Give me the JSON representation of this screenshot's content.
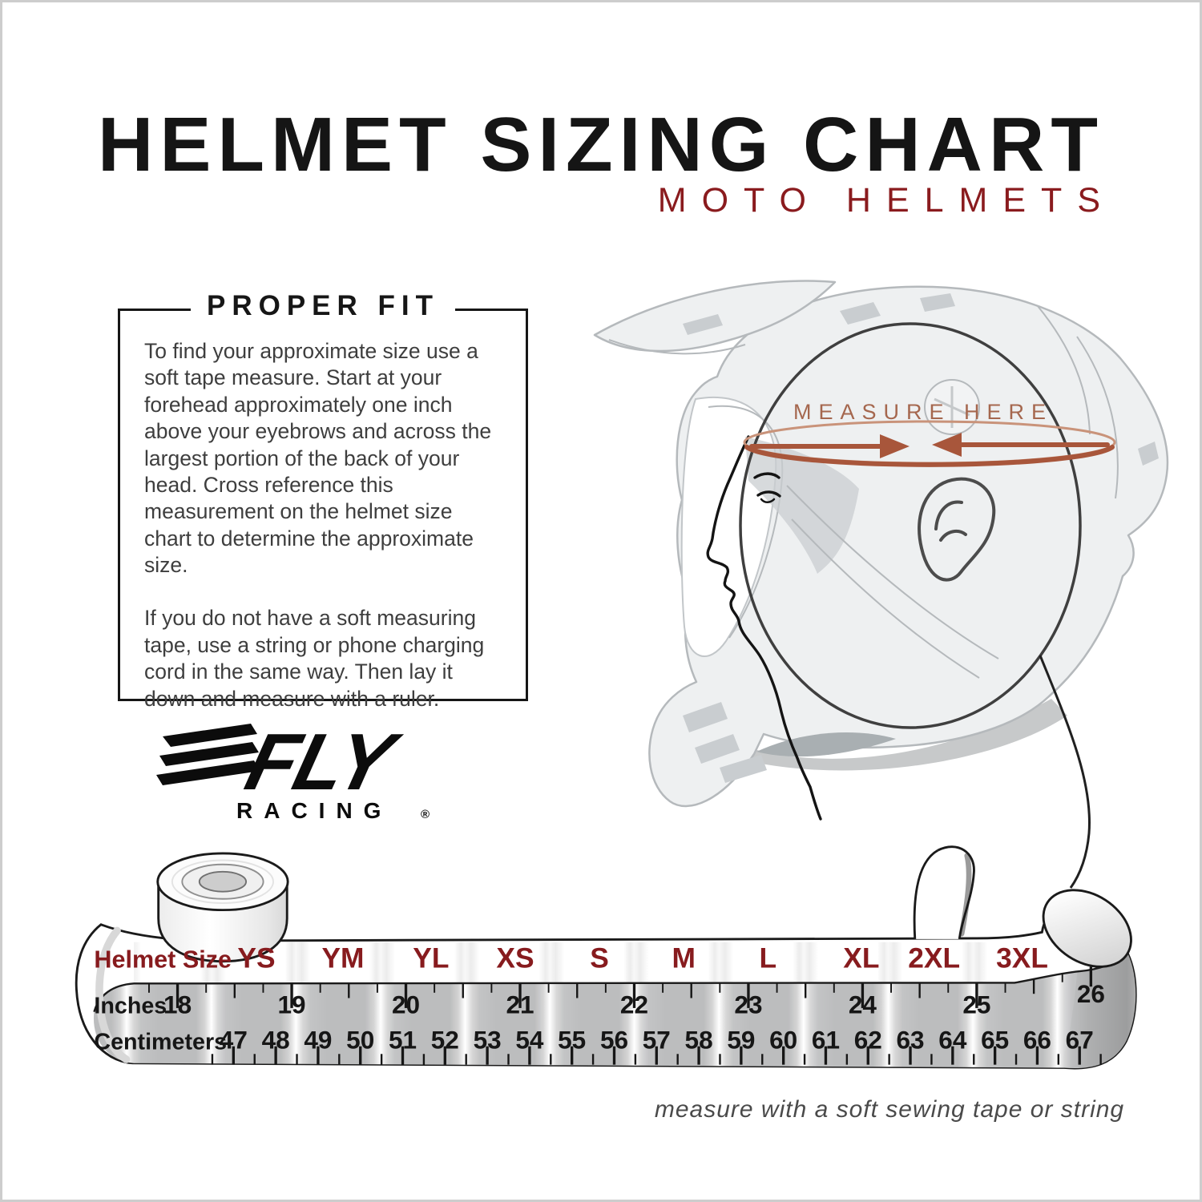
{
  "header": {
    "title": "HELMET SIZING CHART",
    "subtitle": "MOTO HELMETS"
  },
  "proper_fit": {
    "heading": "PROPER FIT",
    "p1": "To find your approximate size use a soft tape measure. Start at your forehead approximately one inch above your eyebrows and across the largest portion of the back of your head. Cross reference this measurement on the helmet size chart to determine the approximate size.",
    "p2": "If you do not have a soft measuring tape, use a string or phone charging cord in the same way. Then lay it down and measure with a ruler."
  },
  "brand": {
    "name": "FLY",
    "subname": "RACING",
    "registered": "®"
  },
  "diagram": {
    "measure_label": "MEASURE HERE"
  },
  "sizing_tape": {
    "row_label_size": "Helmet Size",
    "row_label_inches": "Inches",
    "row_label_cm": "Centimeters",
    "sizes": [
      "YS",
      "YM",
      "YL",
      "XS",
      "S",
      "M",
      "L",
      "XL",
      "2XL",
      "3XL"
    ],
    "inches": [
      18,
      19,
      20,
      21,
      22,
      23,
      24,
      25,
      26
    ],
    "centimeters": [
      47,
      48,
      49,
      50,
      51,
      52,
      53,
      54,
      55,
      56,
      57,
      58,
      59,
      60,
      61,
      62,
      63,
      64,
      65,
      66,
      67
    ],
    "caption": "measure with a soft sewing tape or string"
  },
  "colors": {
    "accent_red": "#8a1b1e",
    "tape_label_red": "#871b1e",
    "measure_rust_dark": "#a8563b",
    "measure_rust_light": "#c9937a",
    "measure_text": "#a5674e",
    "tape_gray": "#bcbdbe",
    "text_dark": "#161616",
    "body_text": "#3e3e3e",
    "caption_gray": "#4a4a4a"
  },
  "chart_data": {
    "type": "table",
    "title": "Helmet Sizing Chart — Moto Helmets",
    "rows": [
      {
        "label": "Helmet Size",
        "values": [
          "YS",
          "YM",
          "YL",
          "XS",
          "S",
          "M",
          "L",
          "XL",
          "2XL",
          "3XL"
        ]
      },
      {
        "label": "Inches",
        "values": [
          18,
          19,
          20,
          21,
          22,
          23,
          24,
          25,
          26
        ]
      },
      {
        "label": "Centimeters",
        "values": [
          47,
          48,
          49,
          50,
          51,
          52,
          53,
          54,
          55,
          56,
          57,
          58,
          59,
          60,
          61,
          62,
          63,
          64,
          65,
          66,
          67
        ]
      }
    ]
  }
}
